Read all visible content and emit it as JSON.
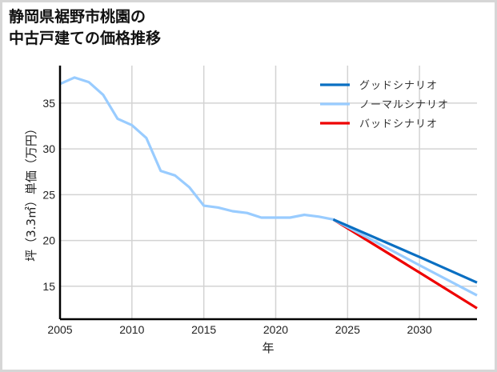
{
  "title": {
    "line1": "静岡県裾野市桃園の",
    "line2": "中古戸建ての価格推移"
  },
  "colors": {
    "good": "#0a6fc2",
    "normal": "#99ccff",
    "bad": "#ee0000",
    "grid": "#d3d3d3",
    "axis": "#000000",
    "frame": "#d6d6d6"
  },
  "chart_data": {
    "type": "line",
    "title": "静岡県裾野市桃園の中古戸建ての価格推移",
    "xlabel": "年",
    "ylabel": "坪（3.3㎡）単価（万円）",
    "xlim": [
      2005,
      2034
    ],
    "ylim": [
      11.4,
      39.1
    ],
    "xticks": [
      2005,
      2010,
      2015,
      2020,
      2025,
      2030
    ],
    "yticks": [
      15,
      20,
      25,
      30,
      35
    ],
    "grid": true,
    "legend_position": "upper right",
    "historical": {
      "name": "ノーマルシナリオ",
      "x": [
        2005,
        2006,
        2007,
        2008,
        2009,
        2010,
        2011,
        2012,
        2013,
        2014,
        2015,
        2016,
        2017,
        2018,
        2019,
        2020,
        2021,
        2022,
        2023,
        2024
      ],
      "y": [
        37.1,
        37.8,
        37.3,
        35.9,
        33.3,
        32.6,
        31.2,
        27.6,
        27.1,
        25.8,
        23.8,
        23.6,
        23.2,
        23.0,
        22.5,
        22.5,
        22.5,
        22.8,
        22.6,
        22.3
      ]
    },
    "series": [
      {
        "name": "グッドシナリオ",
        "color": "#0a6fc2",
        "x": [
          2024,
          2030,
          2034
        ],
        "y": [
          22.3,
          18.2,
          15.4
        ]
      },
      {
        "name": "ノーマルシナリオ",
        "color": "#99ccff",
        "x": [
          2024,
          2030,
          2034
        ],
        "y": [
          22.3,
          17.3,
          14.0
        ]
      },
      {
        "name": "バッドシナリオ",
        "color": "#ee0000",
        "x": [
          2024,
          2030,
          2034
        ],
        "y": [
          22.3,
          16.5,
          12.6
        ]
      }
    ]
  },
  "legend": [
    {
      "label": "グッドシナリオ",
      "color": "#0a6fc2"
    },
    {
      "label": "ノーマルシナリオ",
      "color": "#99ccff"
    },
    {
      "label": "バッドシナリオ",
      "color": "#ee0000"
    }
  ]
}
